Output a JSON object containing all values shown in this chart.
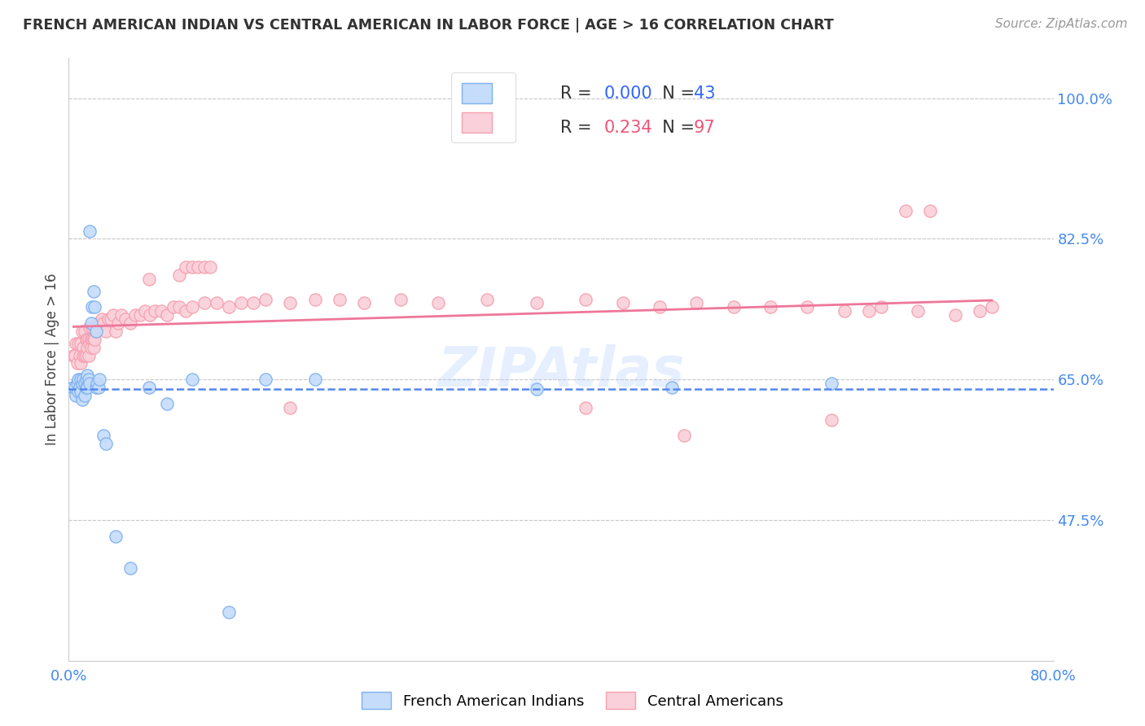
{
  "title": "FRENCH AMERICAN INDIAN VS CENTRAL AMERICAN IN LABOR FORCE | AGE > 16 CORRELATION CHART",
  "source": "Source: ZipAtlas.com",
  "ylabel": "In Labor Force | Age > 16",
  "xlim": [
    0.0,
    0.8
  ],
  "ylim": [
    0.3,
    1.05
  ],
  "yticks": [
    0.475,
    0.65,
    0.825,
    1.0
  ],
  "ytick_labels": [
    "47.5%",
    "65.0%",
    "82.5%",
    "100.0%"
  ],
  "xticks": [
    0.0,
    0.1,
    0.2,
    0.3,
    0.4,
    0.5,
    0.6,
    0.7,
    0.8
  ],
  "xtick_labels": [
    "0.0%",
    "",
    "",
    "",
    "",
    "",
    "",
    "",
    "80.0%"
  ],
  "blue_color": "#7EB1F0",
  "blue_fill": "#C5DCFA",
  "pink_color": "#F5A0B0",
  "pink_fill": "#FAD0DA",
  "line_blue": "#5588EE",
  "line_pink": "#EE7799",
  "legend_R_blue": "0.000",
  "legend_N_blue": "43",
  "legend_R_pink": "0.234",
  "legend_N_pink": "97",
  "blue_scatter_x": [
    0.003,
    0.005,
    0.006,
    0.007,
    0.008,
    0.008,
    0.009,
    0.01,
    0.01,
    0.011,
    0.011,
    0.012,
    0.013,
    0.013,
    0.014,
    0.014,
    0.015,
    0.015,
    0.016,
    0.017,
    0.017,
    0.018,
    0.019,
    0.02,
    0.021,
    0.022,
    0.022,
    0.023,
    0.024,
    0.025,
    0.028,
    0.03,
    0.038,
    0.05,
    0.065,
    0.08,
    0.1,
    0.13,
    0.16,
    0.2,
    0.38,
    0.49,
    0.62
  ],
  "blue_scatter_y": [
    0.64,
    0.64,
    0.63,
    0.645,
    0.635,
    0.65,
    0.64,
    0.65,
    0.635,
    0.645,
    0.625,
    0.65,
    0.645,
    0.63,
    0.65,
    0.64,
    0.655,
    0.64,
    0.65,
    0.645,
    0.835,
    0.72,
    0.74,
    0.76,
    0.74,
    0.64,
    0.71,
    0.645,
    0.64,
    0.65,
    0.58,
    0.57,
    0.455,
    0.415,
    0.64,
    0.62,
    0.65,
    0.36,
    0.65,
    0.65,
    0.638,
    0.64,
    0.645
  ],
  "pink_scatter_x": [
    0.004,
    0.005,
    0.006,
    0.007,
    0.008,
    0.009,
    0.01,
    0.01,
    0.011,
    0.012,
    0.012,
    0.013,
    0.013,
    0.014,
    0.014,
    0.015,
    0.015,
    0.016,
    0.016,
    0.017,
    0.017,
    0.018,
    0.018,
    0.019,
    0.019,
    0.02,
    0.02,
    0.021,
    0.021,
    0.022,
    0.023,
    0.024,
    0.025,
    0.026,
    0.027,
    0.028,
    0.03,
    0.032,
    0.034,
    0.036,
    0.038,
    0.04,
    0.043,
    0.046,
    0.05,
    0.054,
    0.058,
    0.062,
    0.066,
    0.07,
    0.075,
    0.08,
    0.085,
    0.09,
    0.095,
    0.1,
    0.11,
    0.12,
    0.13,
    0.14,
    0.15,
    0.16,
    0.18,
    0.2,
    0.22,
    0.24,
    0.27,
    0.3,
    0.34,
    0.38,
    0.42,
    0.45,
    0.48,
    0.51,
    0.54,
    0.57,
    0.6,
    0.63,
    0.66,
    0.69,
    0.18,
    0.42,
    0.5,
    0.62,
    0.65,
    0.68,
    0.7,
    0.72,
    0.74,
    0.75,
    0.065,
    0.09,
    0.095,
    0.1,
    0.105,
    0.11,
    0.115
  ],
  "pink_scatter_y": [
    0.68,
    0.68,
    0.695,
    0.67,
    0.695,
    0.68,
    0.695,
    0.67,
    0.71,
    0.69,
    0.68,
    0.71,
    0.68,
    0.7,
    0.68,
    0.7,
    0.69,
    0.7,
    0.68,
    0.715,
    0.695,
    0.7,
    0.69,
    0.715,
    0.7,
    0.7,
    0.69,
    0.715,
    0.7,
    0.71,
    0.715,
    0.72,
    0.72,
    0.72,
    0.725,
    0.72,
    0.71,
    0.725,
    0.725,
    0.73,
    0.71,
    0.72,
    0.73,
    0.725,
    0.72,
    0.73,
    0.73,
    0.735,
    0.73,
    0.735,
    0.735,
    0.73,
    0.74,
    0.74,
    0.735,
    0.74,
    0.745,
    0.745,
    0.74,
    0.745,
    0.745,
    0.75,
    0.745,
    0.75,
    0.75,
    0.745,
    0.75,
    0.745,
    0.75,
    0.745,
    0.75,
    0.745,
    0.74,
    0.745,
    0.74,
    0.74,
    0.74,
    0.735,
    0.74,
    0.735,
    0.615,
    0.615,
    0.58,
    0.6,
    0.735,
    0.86,
    0.86,
    0.73,
    0.735,
    0.74,
    0.775,
    0.78,
    0.79,
    0.79,
    0.79,
    0.79,
    0.79
  ],
  "background_color": "#FFFFFF",
  "grid_color": "#CCCCCC",
  "blue_line_x": [
    0.003,
    0.8
  ],
  "blue_line_y": [
    0.638,
    0.638
  ],
  "pink_line_x_start": 0.004,
  "pink_line_x_end": 0.75
}
